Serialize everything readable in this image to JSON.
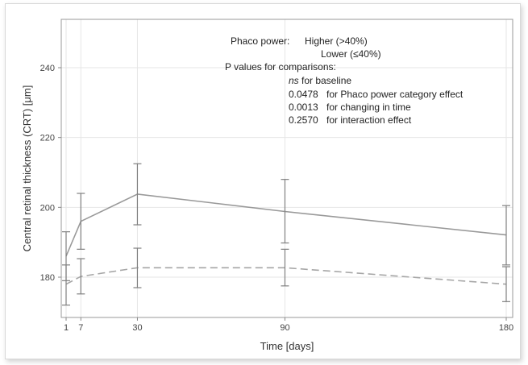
{
  "chart_data": {
    "type": "line",
    "title": "",
    "xlabel": "Time [days]",
    "ylabel": "Central retinal thickness (CRT) [μm]",
    "x": [
      1,
      7,
      30,
      90,
      180
    ],
    "x_tick_labels": [
      "1",
      "7",
      "30",
      "90",
      "180"
    ],
    "y_ticks": [
      180,
      200,
      220,
      240
    ],
    "y_tick_labels": [
      "180",
      "200",
      "220",
      "240"
    ],
    "xlim": [
      0,
      181
    ],
    "ylim": [
      170,
      248
    ],
    "grid": true,
    "legend_placement": "top-center",
    "series": [
      {
        "name": "Higher (>40%)",
        "style": "solid",
        "color": "#999999",
        "values": [
          186.0,
          196.0,
          203.8,
          198.8,
          192.1
        ],
        "ci_low": [
          179.0,
          188.0,
          195.0,
          189.8,
          183.5
        ],
        "ci_high": [
          193.0,
          204.0,
          212.5,
          208.0,
          200.5
        ]
      },
      {
        "name": "Lower (≤40%)",
        "style": "dashed",
        "color": "#a6a6a6",
        "values": [
          178.0,
          180.2,
          182.7,
          182.7,
          178.0
        ],
        "ci_low": [
          172.0,
          175.2,
          177.0,
          177.5,
          173.0
        ],
        "ci_high": [
          183.5,
          185.3,
          188.3,
          188.0,
          183.0
        ]
      }
    ]
  },
  "legend": {
    "heading": "Phaco power:",
    "higher_label": "Higher (>40%)",
    "lower_label": "Lower (≤40%)",
    "pvalues_heading": "P values for comparisons:",
    "rows": [
      {
        "value": "ns",
        "text": "for baseline"
      },
      {
        "value": "0.0478",
        "text": "for Phaco power category effect"
      },
      {
        "value": "0.0013",
        "text": "for changing in time"
      },
      {
        "value": "0.2570",
        "text": "for interaction effect"
      }
    ]
  }
}
